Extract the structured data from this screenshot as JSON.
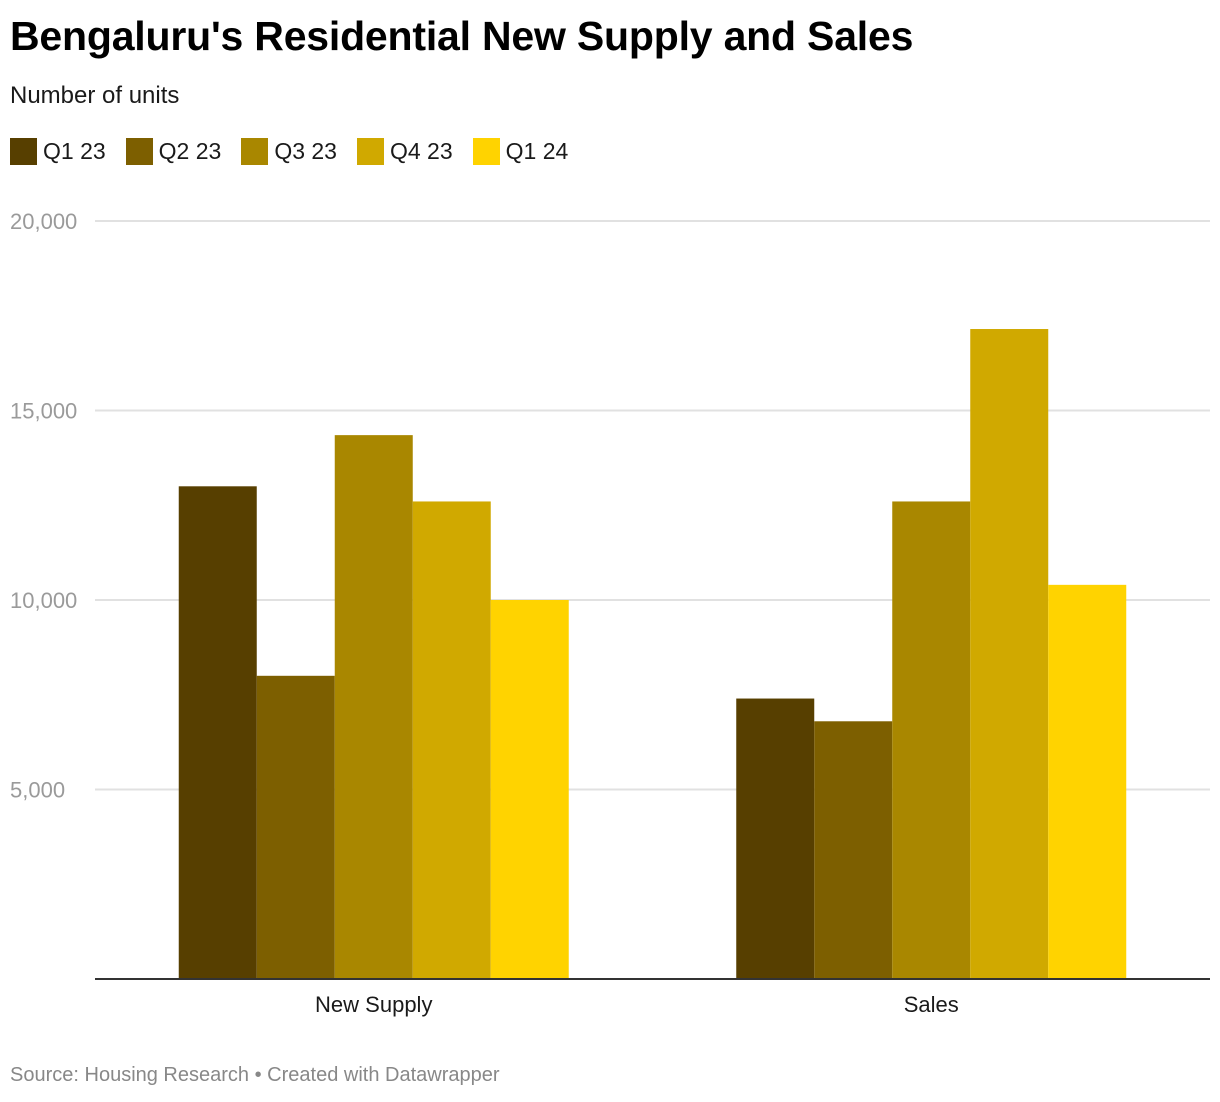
{
  "header": {
    "title": "Bengaluru's Residential New Supply and Sales",
    "subtitle": "Number of units"
  },
  "footer": {
    "source_label": "Source:",
    "source": "Housing Research",
    "separator": "•",
    "credit": "Created with Datawrapper"
  },
  "chart_data": {
    "type": "bar",
    "title": "Bengaluru's Residential New Supply and Sales",
    "subtitle": "Number of units",
    "categories": [
      "New Supply",
      "Sales"
    ],
    "series": [
      {
        "name": "Q1 23",
        "color": "#573f00",
        "values": [
          13000,
          7400
        ]
      },
      {
        "name": "Q2 23",
        "color": "#7d5f00",
        "values": [
          8000,
          6800
        ]
      },
      {
        "name": "Q3 23",
        "color": "#a98700",
        "values": [
          14350,
          12600
        ]
      },
      {
        "name": "Q4 23",
        "color": "#d0a900",
        "values": [
          12600,
          17150
        ]
      },
      {
        "name": "Q1 24",
        "color": "#ffd300",
        "values": [
          10000,
          10400
        ]
      }
    ],
    "ylim": [
      0,
      20000
    ],
    "yticks": [
      5000,
      10000,
      15000,
      20000
    ],
    "ytick_labels": [
      "5,000",
      "10,000",
      "15,000",
      "20,000"
    ],
    "grid": true,
    "legend_position": "top-left",
    "xlabel": "",
    "ylabel": ""
  }
}
